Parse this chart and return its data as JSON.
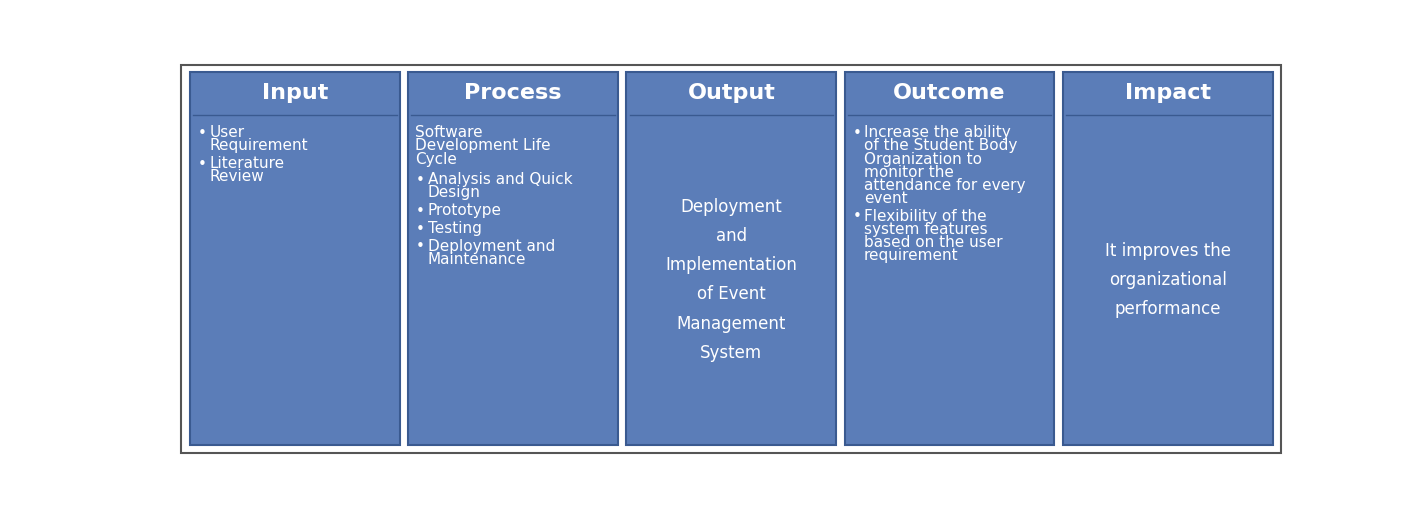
{
  "bg_color": "#ffffff",
  "outer_border_color": "#555555",
  "box_fill": "#5b7db8",
  "box_edge": "#3a5a90",
  "text_color": "#ffffff",
  "fig_width": 14.27,
  "fig_height": 5.12,
  "dpi": 100,
  "columns": [
    {
      "header": "Input",
      "center_body": false,
      "subtitle": null,
      "items": [
        {
          "bullet": true,
          "text": "User\nRequirement"
        },
        {
          "bullet": true,
          "text": "Literature\nReview"
        }
      ]
    },
    {
      "header": "Process",
      "center_body": false,
      "subtitle": "Software\nDevelopment Life\nCycle",
      "items": [
        {
          "bullet": true,
          "text": "Analysis and Quick\nDesign"
        },
        {
          "bullet": true,
          "text": "Prototype"
        },
        {
          "bullet": true,
          "text": "Testing"
        },
        {
          "bullet": true,
          "text": "Deployment and\nMaintenance"
        }
      ]
    },
    {
      "header": "Output",
      "center_body": true,
      "subtitle": null,
      "items": [
        {
          "bullet": false,
          "text": "Deployment\nand\nImplementation\nof Event\nManagement\nSystem"
        }
      ]
    },
    {
      "header": "Outcome",
      "center_body": false,
      "subtitle": null,
      "items": [
        {
          "bullet": true,
          "text": "Increase the ability\nof the Student Body\nOrganization to\nmonitor the\nattendance for every\nevent"
        },
        {
          "bullet": true,
          "text": "Flexibility of the\nsystem features\nbased on the user\nrequirement"
        }
      ]
    },
    {
      "header": "Impact",
      "center_body": true,
      "subtitle": null,
      "items": [
        {
          "bullet": false,
          "text": "It improves the\norganizational\nperformance"
        }
      ]
    }
  ]
}
